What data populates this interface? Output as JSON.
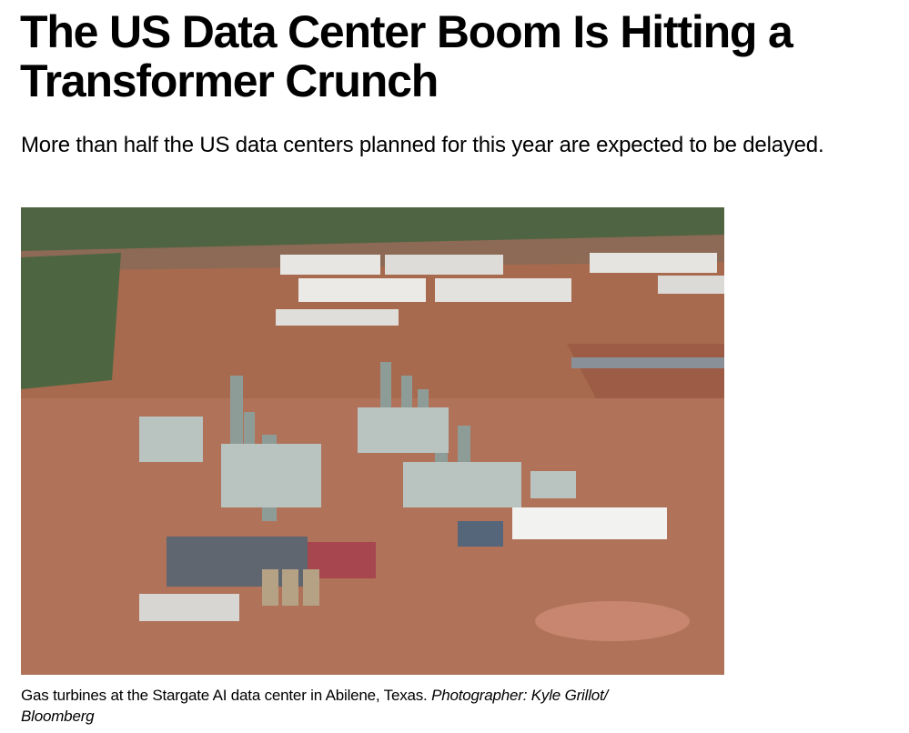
{
  "article": {
    "headline": "The US Data Center Boom Is Hitting a Transformer Crunch",
    "subheadline": "More than half the US data centers planned for this year are expected to be delayed.",
    "image": {
      "caption": "Gas turbines at the Stargate AI data center in Abilene, Texas.",
      "credit": "Photographer: Kyle Grillot/ Bloomberg"
    }
  }
}
